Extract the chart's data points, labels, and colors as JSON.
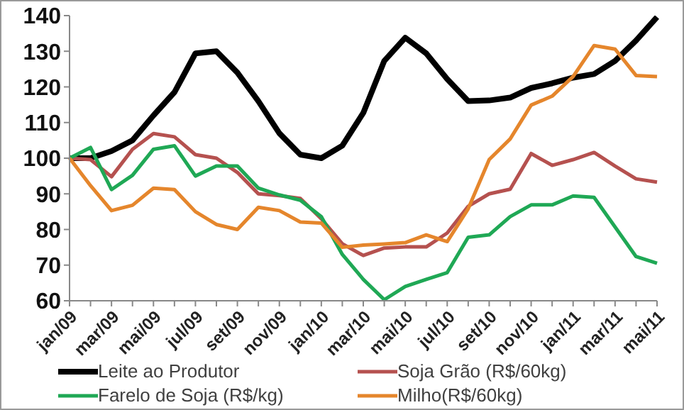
{
  "chart_data": {
    "type": "line",
    "categories": [
      "jan/09",
      null,
      "mar/09",
      null,
      "mai/09",
      null,
      "jul/09",
      null,
      "set/09",
      null,
      "nov/09",
      null,
      "jan/10",
      null,
      "mar/10",
      null,
      "mai/10",
      null,
      "jul/10",
      null,
      "set/10",
      null,
      "nov/10",
      null,
      "jan/11",
      null,
      "mar/11",
      null,
      "mai/11"
    ],
    "series": [
      {
        "name": "Leite ao Produtor",
        "color": "#000000",
        "values": [
          100,
          100,
          102,
          105,
          112,
          118.5,
          129.4,
          130,
          124,
          116,
          107,
          101,
          100,
          103.5,
          112.7,
          127.3,
          133.8,
          129.4,
          122.2,
          116,
          116.2,
          117,
          119.7,
          121,
          122.6,
          123.6,
          127.3,
          133,
          139.6
        ]
      },
      {
        "name": "Soja Grão (R$/60kg)",
        "color": "#b5514f",
        "values": [
          100,
          99.6,
          94.8,
          102.5,
          106.9,
          106,
          101,
          100,
          96,
          90,
          89.5,
          88.7,
          83,
          76,
          72.7,
          74.8,
          75.1,
          75.1,
          79,
          86.5,
          90,
          91.3,
          101.3,
          98,
          99.6,
          101.6,
          97.8,
          94.2,
          93.3
        ]
      },
      {
        "name": "Farelo de Soja (R$/kg)",
        "color": "#1fa855",
        "values": [
          100,
          103,
          91.2,
          95.2,
          102.5,
          103.5,
          95,
          97.8,
          97.8,
          91.6,
          89.7,
          88.2,
          83.6,
          73,
          66,
          60.3,
          64,
          66,
          67.9,
          77.8,
          78.5,
          83.6,
          86.9,
          86.9,
          89.4,
          89,
          80.7,
          72.4,
          70.5
        ]
      },
      {
        "name": "Milho(R$/60kg)",
        "color": "#e5862c",
        "values": [
          100,
          92.3,
          85.3,
          86.8,
          91.6,
          91.2,
          85,
          81.4,
          80,
          86.2,
          85.3,
          82.1,
          81.8,
          75,
          75.6,
          75.9,
          76.3,
          78.5,
          76.6,
          85.8,
          99.6,
          105.4,
          114.9,
          117.4,
          122.9,
          131.6,
          130.6,
          123.2,
          122.9
        ]
      }
    ],
    "ylim": [
      60,
      140
    ],
    "yticks": [
      60,
      70,
      80,
      90,
      100,
      110,
      120,
      130,
      140
    ],
    "grid": false,
    "legend": "bottom",
    "marker": "none",
    "line_style": "solid"
  }
}
